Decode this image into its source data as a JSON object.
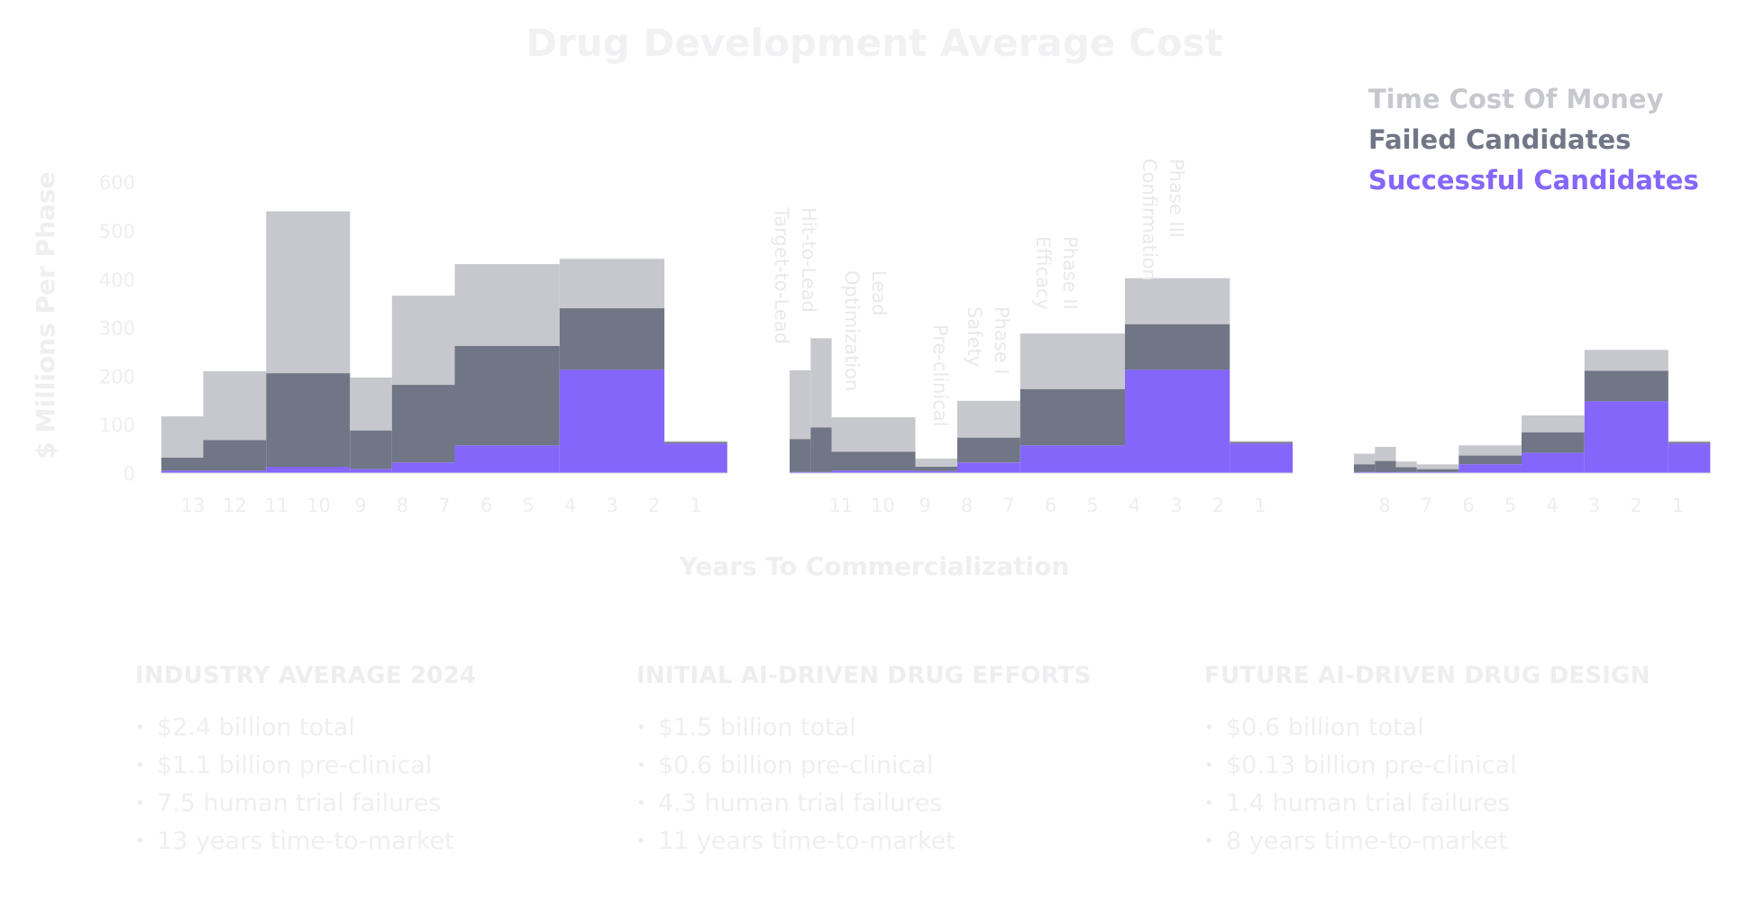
{
  "colors": {
    "time_cost": "#c7c8ce",
    "failed": "#707686",
    "successful": "#8566fb",
    "faint_text": "#efeff1"
  },
  "chart_data": {
    "type": "bar",
    "stacked": true,
    "title": "Drug Development Average Cost",
    "xlabel": "Years To Commercialization",
    "ylabel": "$ Millions Per Phase",
    "ylim": [
      0,
      600
    ],
    "yticks": [
      "600",
      "500",
      "400",
      "300",
      "200",
      "100",
      "0"
    ],
    "legend": {
      "placement": "top-right",
      "entries": [
        "Time Cost Of Money",
        "Failed Candidates",
        "Successful Candidates"
      ]
    },
    "series_names": [
      "Successful Candidates",
      "Failed Candidates",
      "Time Cost Of Money"
    ],
    "groups": [
      {
        "name": "INDUSTRY AVERAGE 2024",
        "x_labels": [
          "13",
          "12",
          "11",
          "10",
          "9",
          "8",
          "7",
          "6",
          "5",
          "4",
          "3",
          "2",
          "1"
        ],
        "bars": [
          {
            "w": 1,
            "successful": 5,
            "failed": 32,
            "total": 117
          },
          {
            "w": 1.5,
            "successful": 5,
            "failed": 68,
            "total": 210
          },
          {
            "w": 2,
            "successful": 13,
            "failed": 206,
            "total": 540
          },
          {
            "w": 1,
            "successful": 8,
            "failed": 88,
            "total": 197
          },
          {
            "w": 1.5,
            "successful": 22,
            "failed": 182,
            "total": 366
          },
          {
            "w": 2.5,
            "successful": 57,
            "failed": 262,
            "total": 431
          },
          {
            "w": 2.5,
            "successful": 213,
            "failed": 340,
            "total": 442
          },
          {
            "w": 1.5,
            "successful": 61,
            "failed": 64,
            "total": 66
          }
        ]
      },
      {
        "name": "INITIAL AI-DRIVEN DRUG EFFORTS",
        "x_labels": [
          "11",
          "10",
          "9",
          "8",
          "7",
          "6",
          "5",
          "4",
          "3",
          "2",
          "1"
        ],
        "bars": [
          {
            "w": 0.5,
            "successful": 2,
            "failed": 70,
            "total": 212
          },
          {
            "w": 0.5,
            "successful": 2,
            "failed": 94,
            "total": 278
          },
          {
            "w": 2,
            "successful": 5,
            "failed": 44,
            "total": 115
          },
          {
            "w": 1,
            "successful": 4,
            "failed": 13,
            "total": 30
          },
          {
            "w": 1.5,
            "successful": 22,
            "failed": 73,
            "total": 149
          },
          {
            "w": 2.5,
            "successful": 57,
            "failed": 173,
            "total": 288
          },
          {
            "w": 2.5,
            "successful": 213,
            "failed": 307,
            "total": 402
          },
          {
            "w": 1.5,
            "successful": 61,
            "failed": 64,
            "total": 66
          }
        ],
        "phase_labels": [
          "Hit-to-Lead\nTarget-to-Lead",
          "Lead\nOptimization",
          "Pre-clinical",
          "Phase I\nSafety",
          "Phase II\nEfficacy",
          "Phase III\nConfirmation"
        ]
      },
      {
        "name": "FUTURE AI-DRIVEN DRUG DESIGN",
        "x_labels": [
          "8",
          "7",
          "6",
          "5",
          "4",
          "3",
          "2",
          "1"
        ],
        "bars": [
          {
            "w": 0.5,
            "successful": 2,
            "failed": 18,
            "total": 40
          },
          {
            "w": 0.5,
            "successful": 2,
            "failed": 25,
            "total": 54
          },
          {
            "w": 0.5,
            "successful": 2,
            "failed": 12,
            "total": 24
          },
          {
            "w": 1,
            "successful": 2,
            "failed": 8,
            "total": 18
          },
          {
            "w": 1.5,
            "successful": 18,
            "failed": 36,
            "total": 57
          },
          {
            "w": 1.5,
            "successful": 42,
            "failed": 84,
            "total": 119
          },
          {
            "w": 2,
            "successful": 148,
            "failed": 211,
            "total": 254
          },
          {
            "w": 1,
            "successful": 61,
            "failed": 64,
            "total": 66
          }
        ]
      }
    ]
  },
  "panels": [
    {
      "heading": "INDUSTRY AVERAGE 2024",
      "items": [
        "$2.4 billion total",
        "$1.1 billion pre-clinical",
        "7.5 human trial failures",
        "13 years time-to-market"
      ]
    },
    {
      "heading": "INITIAL AI-DRIVEN DRUG EFFORTS",
      "items": [
        "$1.5 billion total",
        "$0.6 billion pre-clinical",
        "4.3 human trial failures",
        "11 years time-to-market"
      ]
    },
    {
      "heading": "FUTURE AI-DRIVEN DRUG DESIGN",
      "items": [
        "$0.6 billion total",
        "$0.13 billion pre-clinical",
        "1.4 human trial failures",
        "8 years time-to-market"
      ]
    }
  ]
}
